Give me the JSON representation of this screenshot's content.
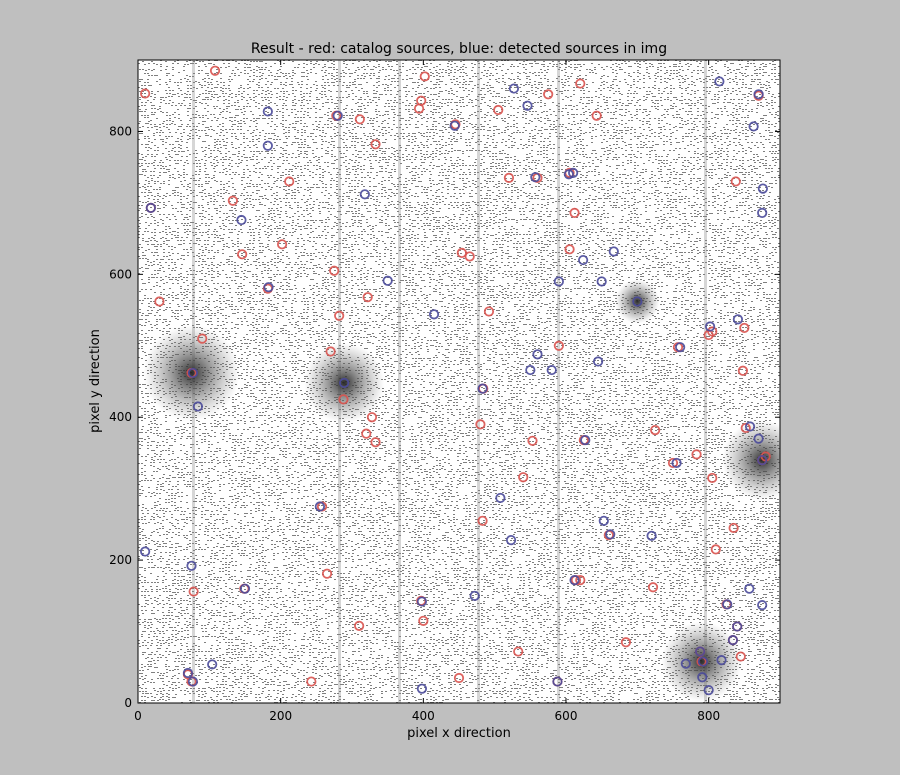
{
  "chart_data": {
    "type": "scatter",
    "title": "Result - red: catalog sources, blue: detected sources in img",
    "xlabel": "pixel x direction",
    "ylabel": "pixel y direction",
    "xlim": [
      0,
      900
    ],
    "ylim": [
      0,
      900
    ],
    "xticks": [
      0,
      200,
      400,
      600,
      800
    ],
    "yticks": [
      0,
      200,
      400,
      600,
      800
    ],
    "grid": false,
    "legend": "none",
    "background": "noisy grayscale astronomical image",
    "colors": {
      "catalog": "#d9534f",
      "detected": "#4a4a9a",
      "image_bg": "#ffffff",
      "image_noise": "#7f7f7f"
    },
    "series": [
      {
        "marker": "open-circle",
        "color": "#d9534f",
        "points": [
          [
            10,
            853
          ],
          [
            108,
            885
          ],
          [
            402,
            877
          ],
          [
            397,
            843
          ],
          [
            394,
            832
          ],
          [
            575,
            852
          ],
          [
            620,
            867
          ],
          [
            643,
            822
          ],
          [
            311,
            817
          ],
          [
            333,
            782
          ],
          [
            278,
            822
          ],
          [
            18,
            693
          ],
          [
            133,
            703
          ],
          [
            212,
            730
          ],
          [
            202,
            642
          ],
          [
            146,
            628
          ],
          [
            30,
            562
          ],
          [
            182,
            580
          ],
          [
            275,
            605
          ],
          [
            282,
            542
          ],
          [
            322,
            568
          ],
          [
            270,
            492
          ],
          [
            90,
            510
          ],
          [
            75,
            462
          ],
          [
            288,
            425
          ],
          [
            328,
            400
          ],
          [
            320,
            377
          ],
          [
            333,
            365
          ],
          [
            454,
            630
          ],
          [
            465,
            625
          ],
          [
            492,
            548
          ],
          [
            484,
            440
          ],
          [
            480,
            390
          ],
          [
            520,
            735
          ],
          [
            505,
            830
          ],
          [
            560,
            735
          ],
          [
            605,
            742
          ],
          [
            612,
            686
          ],
          [
            605,
            635
          ],
          [
            590,
            500
          ],
          [
            553,
            367
          ],
          [
            540,
            316
          ],
          [
            483,
            255
          ],
          [
            614,
            172
          ],
          [
            625,
            368
          ],
          [
            660,
            235
          ],
          [
            684,
            85
          ],
          [
            722,
            162
          ],
          [
            725,
            382
          ],
          [
            750,
            336
          ],
          [
            757,
            498
          ],
          [
            783,
            348
          ],
          [
            800,
            515
          ],
          [
            805,
            315
          ],
          [
            810,
            215
          ],
          [
            835,
            245
          ],
          [
            838,
            730
          ],
          [
            850,
            525
          ],
          [
            848,
            465
          ],
          [
            852,
            385
          ],
          [
            880,
            345
          ],
          [
            875,
            340
          ],
          [
            825,
            138
          ],
          [
            840,
            107
          ],
          [
            834,
            88
          ],
          [
            845,
            65
          ],
          [
            788,
            72
          ],
          [
            790,
            58
          ],
          [
            149,
            160
          ],
          [
            78,
            156
          ],
          [
            75,
            30
          ],
          [
            70,
            40
          ],
          [
            258,
            275
          ],
          [
            265,
            181
          ],
          [
            243,
            30
          ],
          [
            310,
            108
          ],
          [
            400,
            115
          ],
          [
            397,
            143
          ],
          [
            450,
            35
          ],
          [
            533,
            72
          ],
          [
            588,
            30
          ],
          [
            870,
            850
          ],
          [
            445,
            810
          ],
          [
            620,
            172
          ],
          [
            805,
            520
          ]
        ]
      },
      {
        "marker": "open-circle",
        "color": "#4a4a9a",
        "points": [
          [
            182,
            828
          ],
          [
            182,
            780
          ],
          [
            527,
            860
          ],
          [
            546,
            836
          ],
          [
            815,
            870
          ],
          [
            863,
            807
          ],
          [
            876,
            720
          ],
          [
            875,
            686
          ],
          [
            18,
            693
          ],
          [
            145,
            676
          ],
          [
            318,
            712
          ],
          [
            444,
            808
          ],
          [
            557,
            736
          ],
          [
            604,
            740
          ],
          [
            624,
            620
          ],
          [
            667,
            632
          ],
          [
            590,
            590
          ],
          [
            650,
            590
          ],
          [
            415,
            544
          ],
          [
            350,
            591
          ],
          [
            183,
            582
          ],
          [
            280,
            822
          ],
          [
            289,
            448
          ],
          [
            84,
            415
          ],
          [
            77,
            462
          ],
          [
            483,
            440
          ],
          [
            560,
            488
          ],
          [
            550,
            466
          ],
          [
            580,
            466
          ],
          [
            645,
            478
          ],
          [
            700,
            562
          ],
          [
            760,
            498
          ],
          [
            802,
            527
          ],
          [
            841,
            537
          ],
          [
            858,
            387
          ],
          [
            870,
            370
          ],
          [
            875,
            340
          ],
          [
            627,
            368
          ],
          [
            653,
            255
          ],
          [
            720,
            234
          ],
          [
            662,
            236
          ],
          [
            508,
            287
          ],
          [
            523,
            228
          ],
          [
            472,
            150
          ],
          [
            398,
            20
          ],
          [
            398,
            142
          ],
          [
            588,
            30
          ],
          [
            255,
            275
          ],
          [
            10,
            212
          ],
          [
            75,
            192
          ],
          [
            104,
            54
          ],
          [
            70,
            42
          ],
          [
            77,
            30
          ],
          [
            150,
            160
          ],
          [
            768,
            55
          ],
          [
            788,
            72
          ],
          [
            792,
            58
          ],
          [
            791,
            36
          ],
          [
            800,
            18
          ],
          [
            818,
            60
          ],
          [
            826,
            138
          ],
          [
            834,
            88
          ],
          [
            840,
            107
          ],
          [
            857,
            160
          ],
          [
            875,
            137
          ],
          [
            870,
            852
          ],
          [
            612,
            172
          ],
          [
            610,
            742
          ],
          [
            755,
            336
          ]
        ]
      }
    ]
  }
}
